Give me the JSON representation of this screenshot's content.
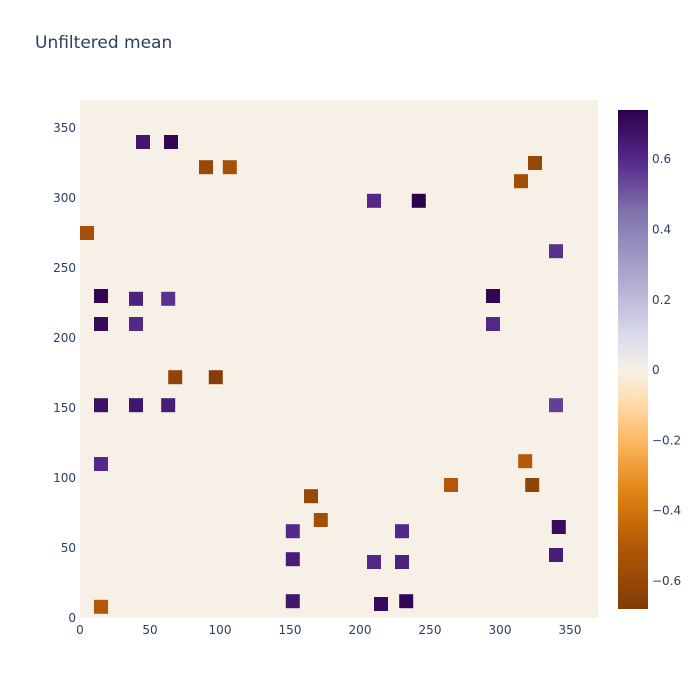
{
  "chart_data": {
    "type": "heatmap",
    "title": "Unfiltered mean",
    "xlabel": "",
    "ylabel": "",
    "xlim": [
      0,
      370
    ],
    "ylim": [
      0,
      370
    ],
    "x_ticks": [
      0,
      50,
      100,
      150,
      200,
      250,
      300,
      350
    ],
    "y_ticks": [
      0,
      50,
      100,
      150,
      200,
      250,
      300,
      350
    ],
    "colorbar": {
      "range": [
        -0.68,
        0.74
      ],
      "ticks": [
        -0.6,
        -0.4,
        -0.2,
        0,
        0.2,
        0.4,
        0.6
      ],
      "tick_labels": [
        "−0.6",
        "−0.4",
        "−0.2",
        "0",
        "0.2",
        "0.4",
        "0.6"
      ],
      "colorscale": [
        [
          -0.68,
          "#7f3b08"
        ],
        [
          -0.5,
          "#b35806"
        ],
        [
          -0.35,
          "#e08214"
        ],
        [
          -0.2,
          "#fdb863"
        ],
        [
          -0.08,
          "#fee0b6"
        ],
        [
          0,
          "#f7f0e6"
        ],
        [
          0.1,
          "#d8daeb"
        ],
        [
          0.25,
          "#b2abd2"
        ],
        [
          0.45,
          "#8073ac"
        ],
        [
          0.6,
          "#542788"
        ],
        [
          0.74,
          "#2d004b"
        ]
      ]
    },
    "background_value": 0,
    "clusters": [
      {
        "x": 15,
        "y": 230,
        "value": 0.72
      },
      {
        "x": 15,
        "y": 210,
        "value": 0.7
      },
      {
        "x": 15,
        "y": 152,
        "value": 0.68
      },
      {
        "x": 15,
        "y": 110,
        "value": 0.6
      },
      {
        "x": 40,
        "y": 152,
        "value": 0.66
      },
      {
        "x": 40,
        "y": 210,
        "value": 0.6
      },
      {
        "x": 40,
        "y": 228,
        "value": 0.62
      },
      {
        "x": 45,
        "y": 340,
        "value": 0.66
      },
      {
        "x": 65,
        "y": 340,
        "value": 0.72
      },
      {
        "x": 63,
        "y": 152,
        "value": 0.64
      },
      {
        "x": 63,
        "y": 228,
        "value": 0.58
      },
      {
        "x": 90,
        "y": 322,
        "value": -0.6
      },
      {
        "x": 107,
        "y": 322,
        "value": -0.55
      },
      {
        "x": 68,
        "y": 172,
        "value": -0.62
      },
      {
        "x": 97,
        "y": 172,
        "value": -0.66
      },
      {
        "x": 165,
        "y": 87,
        "value": -0.6
      },
      {
        "x": 172,
        "y": 70,
        "value": -0.56
      },
      {
        "x": 215,
        "y": 10,
        "value": 0.7
      },
      {
        "x": 233,
        "y": 12,
        "value": 0.72
      },
      {
        "x": 242,
        "y": 298,
        "value": 0.74
      },
      {
        "x": 210,
        "y": 298,
        "value": 0.6
      },
      {
        "x": 152,
        "y": 12,
        "value": 0.66
      },
      {
        "x": 152,
        "y": 42,
        "value": 0.64
      },
      {
        "x": 152,
        "y": 62,
        "value": 0.6
      },
      {
        "x": 210,
        "y": 40,
        "value": 0.6
      },
      {
        "x": 230,
        "y": 40,
        "value": 0.62
      },
      {
        "x": 230,
        "y": 62,
        "value": 0.6
      },
      {
        "x": 295,
        "y": 230,
        "value": 0.72
      },
      {
        "x": 295,
        "y": 210,
        "value": 0.6
      },
      {
        "x": 325,
        "y": 325,
        "value": -0.6
      },
      {
        "x": 315,
        "y": 312,
        "value": -0.56
      },
      {
        "x": 323,
        "y": 95,
        "value": -0.62
      },
      {
        "x": 342,
        "y": 65,
        "value": 0.7
      },
      {
        "x": 340,
        "y": 45,
        "value": 0.64
      },
      {
        "x": 340,
        "y": 152,
        "value": 0.55
      },
      {
        "x": 340,
        "y": 262,
        "value": 0.58
      },
      {
        "x": 265,
        "y": 95,
        "value": -0.5
      },
      {
        "x": 318,
        "y": 112,
        "value": -0.5
      },
      {
        "x": 15,
        "y": 8,
        "value": -0.5
      },
      {
        "x": 5,
        "y": 275,
        "value": -0.55
      }
    ]
  }
}
